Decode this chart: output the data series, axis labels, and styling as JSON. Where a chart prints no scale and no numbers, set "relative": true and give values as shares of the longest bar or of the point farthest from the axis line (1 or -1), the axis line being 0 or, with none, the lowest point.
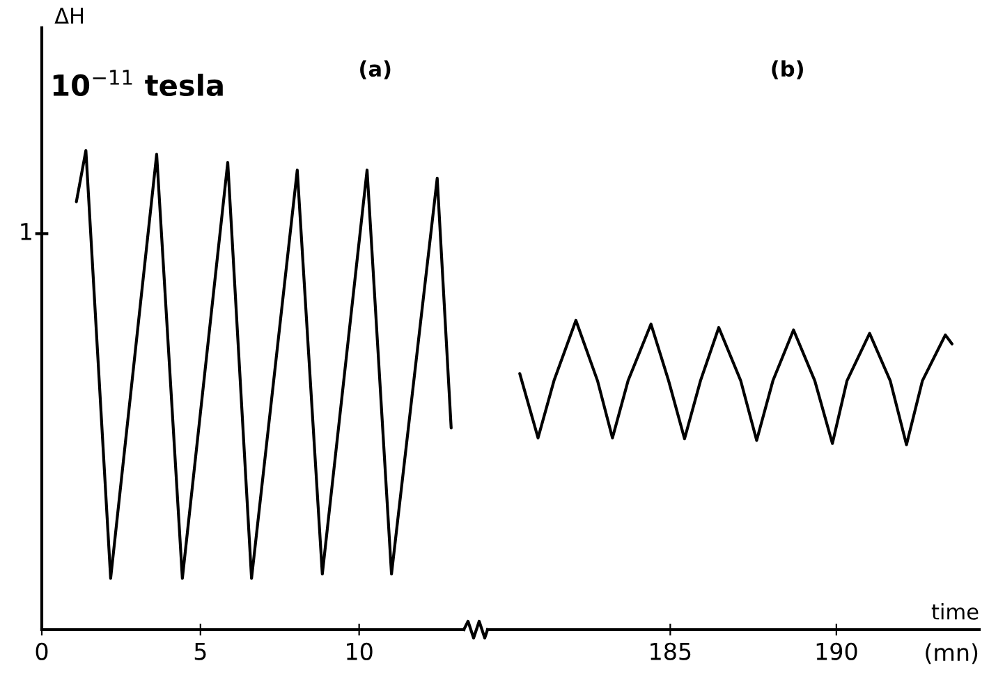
{
  "chart_data": [
    {
      "type": "line",
      "title": "(a)",
      "ylabel": "ΔH",
      "relative": true,
      "annotations": [
        "10$^{−11}$ tesla",
        "1"
      ],
      "x": [
        1.09,
        1.39,
        2.17,
        3.62,
        4.43,
        5.86,
        6.61,
        8.05,
        8.84,
        10.25,
        11.02,
        12.46,
        12.9
      ],
      "series": [
        {
          "color": "#000000",
          "values": [
            0.893,
            1,
            0.107,
            0.992,
            0.107,
            0.975,
            0.107,
            0.959,
            0.116,
            0.959,
            0.116,
            0.942,
            0.421
          ]
        }
      ],
      "xlim": [
        0,
        13.3
      ],
      "xticks": [
        0,
        5,
        10
      ]
    },
    {
      "type": "line",
      "title": "(b)",
      "xlabel": "time",
      "relative": true,
      "annotations": [
        "(mn)"
      ],
      "tick_labels": "x",
      "x": [
        180.47,
        181.02,
        181.5,
        182.16,
        182.81,
        183.26,
        183.73,
        184.42,
        184.95,
        185.43,
        185.91,
        186.46,
        187.12,
        187.6,
        188.09,
        188.71,
        189.35,
        189.88,
        190.32,
        191.0,
        191.62,
        192.11,
        192.59,
        193.28,
        193.48
      ],
      "series": [
        {
          "color": "#000000",
          "values": [
            0.828,
            0.62,
            0.805,
            1,
            0.805,
            0.62,
            0.805,
            0.988,
            0.805,
            0.617,
            0.805,
            0.977,
            0.805,
            0.612,
            0.805,
            0.969,
            0.805,
            0.602,
            0.805,
            0.958,
            0.805,
            0.598,
            0.805,
            0.953,
            0.924
          ]
        }
      ],
      "xlim": [
        179.5,
        194.3
      ],
      "xticks": [
        185,
        190
      ]
    }
  ]
}
